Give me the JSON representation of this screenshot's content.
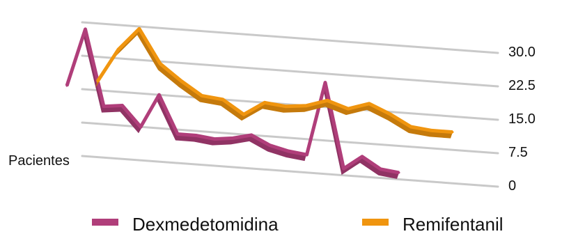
{
  "chart_data": {
    "type": "line",
    "ylabel": "Pacientes",
    "ylim": [
      0,
      30
    ],
    "yticks": [
      "0",
      "7.5",
      "15.0",
      "22.5",
      "30.0"
    ],
    "grid": true,
    "legend_position": "bottom",
    "series": [
      {
        "name": "Dexmedetomidina",
        "color": "#b03e7a",
        "values": [
          15.5,
          28.5,
          11.5,
          12.0,
          7.5,
          15.0,
          6.5,
          6.5,
          6.0,
          6.5,
          7.5,
          5.5,
          4.5,
          4.0,
          20.5,
          1.5,
          4.5,
          2.0,
          1.5
        ]
      },
      {
        "name": "Remifentanil",
        "color": "#f0950f",
        "values": [
          17.0,
          24.5,
          29.5,
          22.0,
          18.5,
          15.5,
          15.0,
          12.0,
          15.0,
          14.5,
          15.0,
          16.5,
          15.0,
          16.5,
          14.5,
          12.0,
          11.5,
          11.5
        ]
      }
    ]
  }
}
